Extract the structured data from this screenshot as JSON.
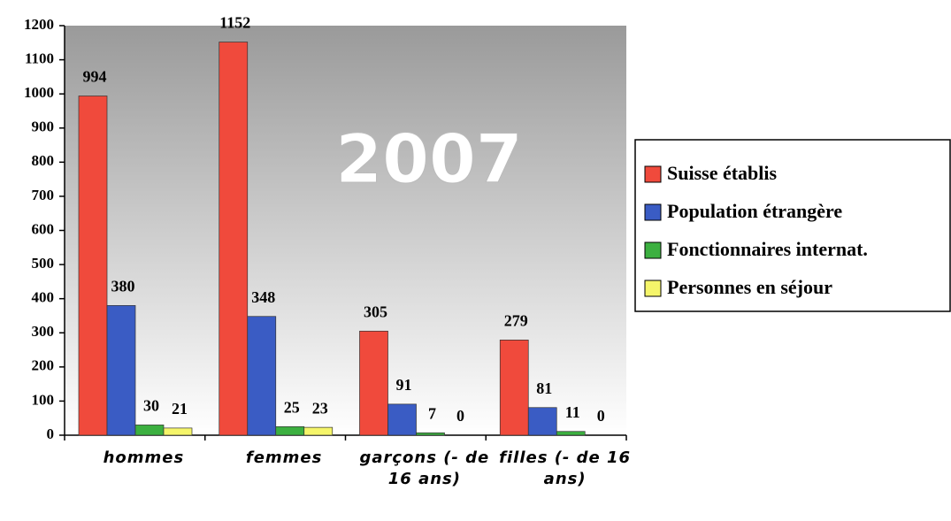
{
  "chart_data": {
    "type": "bar",
    "annotation": "2007",
    "categories": [
      "hommes",
      "femmes",
      "garçons (- de 16 ans)",
      "filles (- de 16 ans)"
    ],
    "series": [
      {
        "name": "Suisse établis",
        "color": "#f04a3c",
        "values": [
          994,
          1152,
          305,
          279
        ]
      },
      {
        "name": "Population étrangère",
        "color": "#3a5cc4",
        "values": [
          380,
          348,
          91,
          81
        ]
      },
      {
        "name": "Fonctionnaires internat.",
        "color": "#3cb040",
        "values": [
          30,
          25,
          7,
          11
        ]
      },
      {
        "name": "Personnes en séjour",
        "color": "#f5f56a",
        "values": [
          21,
          23,
          0,
          0
        ]
      }
    ],
    "ylim": [
      0,
      1200
    ],
    "yticks": [
      0,
      100,
      200,
      300,
      400,
      500,
      600,
      700,
      800,
      900,
      1000,
      1100,
      1200
    ],
    "legend": "right"
  }
}
